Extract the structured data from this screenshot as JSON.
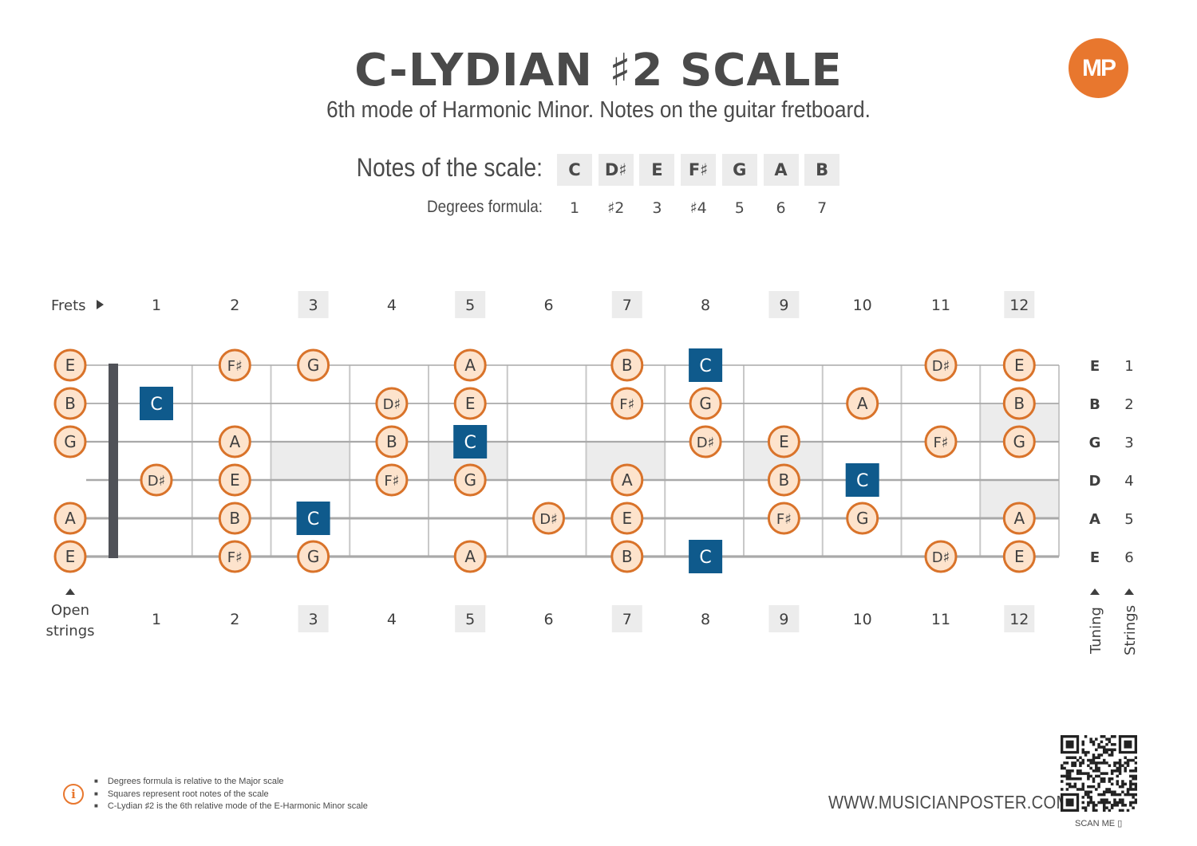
{
  "title": "C-LYDIAN ♯2 SCALE",
  "subtitle": "6th mode of Harmonic Minor. Notes on the guitar fretboard.",
  "logo_text": "MP",
  "notes_label": "Notes of the scale:",
  "degrees_label": "Degrees formula:",
  "scale_notes": [
    "C",
    "D♯",
    "E",
    "F♯",
    "G",
    "A",
    "B"
  ],
  "degrees": [
    "1",
    "♯2",
    "3",
    "♯4",
    "5",
    "6",
    "7"
  ],
  "frets_label": "Frets",
  "fret_numbers": [
    "1",
    "2",
    "3",
    "4",
    "5",
    "6",
    "7",
    "8",
    "9",
    "10",
    "11",
    "12"
  ],
  "highlighted_frets": [
    3,
    5,
    7,
    9,
    12
  ],
  "open_strings_label": [
    "Open",
    "strings"
  ],
  "tuning_label": "Tuning",
  "strings_label": "Strings",
  "tuning": [
    "E",
    "B",
    "G",
    "D",
    "A",
    "E"
  ],
  "string_numbers": [
    "1",
    "2",
    "3",
    "4",
    "5",
    "6"
  ],
  "root_note": "C",
  "open_notes": [
    "E",
    "B",
    "G",
    "",
    "A",
    "E"
  ],
  "fretboard_notes": [
    [
      "",
      "F♯",
      "G",
      "",
      "A",
      "",
      "B",
      "C",
      "",
      "",
      "D♯",
      "E"
    ],
    [
      "C",
      "",
      "",
      "D♯",
      "E",
      "",
      "F♯",
      "G",
      "",
      "A",
      "",
      "B"
    ],
    [
      "",
      "A",
      "",
      "B",
      "C",
      "",
      "",
      "D♯",
      "E",
      "",
      "F♯",
      "G"
    ],
    [
      "D♯",
      "E",
      "",
      "F♯",
      "G",
      "",
      "A",
      "",
      "B",
      "C",
      "",
      ""
    ],
    [
      "",
      "B",
      "C",
      "",
      "",
      "D♯",
      "E",
      "",
      "F♯",
      "G",
      "",
      "A"
    ],
    [
      "",
      "F♯",
      "G",
      "",
      "A",
      "",
      "B",
      "C",
      "",
      "",
      "D♯",
      "E"
    ]
  ],
  "colors": {
    "note_fill": "#fde3cc",
    "note_border": "#d9732a",
    "root_fill": "#0f5a8c",
    "marker_fill": "#ececec",
    "logo": "#e8772e"
  },
  "footnotes": [
    "Degrees formula is relative to the Major scale",
    "Squares represent root notes of the scale",
    "C-Lydian ♯2 is the 6th relative mode of the E-Harmonic Minor scale"
  ],
  "website": "WWW.MUSICIANPOSTER.COM",
  "scan_me": "SCAN ME"
}
